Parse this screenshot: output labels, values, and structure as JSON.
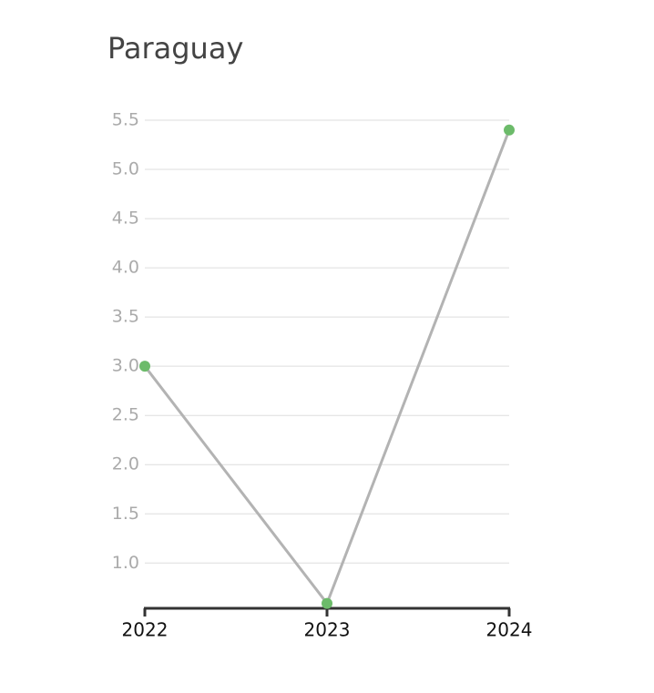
{
  "chart_data": {
    "type": "line",
    "title": "Paraguay",
    "x": [
      2022,
      2023,
      2024
    ],
    "xlim": [
      2022,
      2024
    ],
    "xticks": [
      2022,
      2023,
      2024
    ],
    "series": [
      {
        "values": [
          3.0,
          0.59,
          5.4
        ],
        "color": "#b3b3b3",
        "marker_color": "#6cbb6a"
      }
    ],
    "ylim": [
      0.54,
      5.5
    ],
    "yticks": [
      {
        "value": 1,
        "label": "1.0"
      },
      1.5,
      {
        "value": 2,
        "label": "2.0"
      },
      2.5,
      {
        "value": 3,
        "label": "3.0"
      },
      3.5,
      {
        "value": 4,
        "label": "4.0"
      },
      4.5,
      {
        "value": 5,
        "label": "5.0"
      },
      5.5
    ],
    "grid": true
  }
}
